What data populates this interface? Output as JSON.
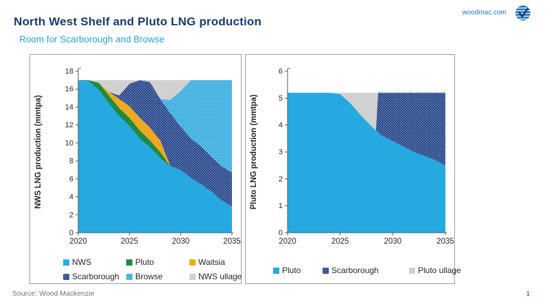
{
  "page": {
    "title": "North West Shelf and Pluto LNG production",
    "subtitle": "Room for Scarborough and Browse",
    "brand": "woodmac.com",
    "source": "Source: Wood Mackenzie",
    "page_number": "1"
  },
  "colors": {
    "title_navy": "#1B3A6B",
    "subtitle_blue": "#29A3D7",
    "brand_blue": "#1E74B9",
    "nws_blue": "#25A9E0",
    "pluto_green": "#1F8A44",
    "waitsia_yellow": "#F0A81E",
    "scarborough_navy": "#1A3A7E",
    "ullage_grey": "#C9C9C9",
    "axis_grey": "#595959",
    "source_grey": "#767171"
  },
  "chart_data": [
    {
      "type": "area",
      "stacked": true,
      "ylabel": "NWS LNG production (mmtpa)",
      "xlim": [
        2020,
        2035
      ],
      "ylim": [
        0,
        18
      ],
      "capacity": 17,
      "yticks": [
        0,
        2,
        4,
        6,
        8,
        10,
        12,
        14,
        16,
        18
      ],
      "xticks": [
        2020,
        2025,
        2030,
        2035
      ],
      "grid": false,
      "legend_position": "bottom",
      "x": [
        2020,
        2021,
        2022,
        2023,
        2024,
        2025,
        2026,
        2027,
        2028,
        2029,
        2030,
        2031,
        2032,
        2033,
        2034,
        2035
      ],
      "series": [
        {
          "name": "NWS",
          "fill": "#25A9E0",
          "values": [
            17.0,
            16.9,
            15.9,
            14.4,
            13.0,
            11.9,
            10.5,
            9.5,
            8.3,
            7.4,
            7.0,
            6.1,
            5.4,
            4.6,
            3.6,
            2.9
          ]
        },
        {
          "name": "Pluto",
          "fill": "#1F8A44",
          "values": [
            0,
            0.1,
            0.8,
            0.9,
            0.9,
            0.9,
            0.9,
            0.8,
            0.7,
            0,
            0,
            0,
            0,
            0,
            0,
            0
          ]
        },
        {
          "name": "Waitsia",
          "fill": "#F0A81E",
          "values": [
            0,
            0,
            0,
            0.4,
            1.0,
            1.3,
            1.4,
            1.4,
            1.3,
            0,
            0,
            0,
            0,
            0,
            0,
            0
          ]
        },
        {
          "name": "Scarborough",
          "fill": "pattern:scar",
          "values": [
            0,
            0,
            0,
            0,
            0.4,
            2.5,
            4.2,
            5.1,
            4.6,
            5.9,
            4.8,
            4.4,
            4.2,
            3.9,
            3.8,
            3.8
          ]
        },
        {
          "name": "Browse",
          "fill": "pattern:browse",
          "values": [
            0,
            0,
            0,
            0,
            0,
            0,
            0,
            0,
            0,
            1.5,
            4.0,
            6.5,
            7.4,
            8.5,
            9.6,
            10.3
          ]
        },
        {
          "name": "NWS ullage",
          "fill": "pattern:ullage",
          "values": [
            0,
            0,
            0.3,
            1.3,
            1.7,
            0.4,
            0,
            0.2,
            2.1,
            2.2,
            1.2,
            0,
            0,
            0,
            0,
            0
          ]
        }
      ]
    },
    {
      "type": "area",
      "stacked": true,
      "ylabel": "Pluto LNG production (mmtpa)",
      "xlim": [
        2020,
        2035
      ],
      "ylim": [
        0,
        6
      ],
      "capacity": 5.2,
      "yticks": [
        0,
        1,
        2,
        3,
        4,
        5,
        6
      ],
      "xticks": [
        2020,
        2025,
        2030,
        2035
      ],
      "grid": false,
      "legend_position": "bottom",
      "x": [
        2020,
        2021,
        2022,
        2023,
        2024,
        2025,
        2026,
        2027,
        2028,
        2028.4,
        2028.6,
        2029,
        2030,
        2031,
        2032,
        2033,
        2034,
        2035
      ],
      "series": [
        {
          "name": "Pluto",
          "fill": "#25A9E0",
          "values": [
            5.2,
            5.2,
            5.2,
            5.2,
            5.2,
            5.15,
            4.8,
            4.35,
            3.95,
            3.8,
            3.75,
            3.6,
            3.4,
            3.2,
            3.0,
            2.85,
            2.7,
            2.5
          ]
        },
        {
          "name": "Scarborough",
          "fill": "pattern:scar",
          "values": [
            0,
            0,
            0,
            0,
            0,
            0,
            0,
            0,
            0,
            0,
            1.45,
            1.6,
            1.8,
            2.0,
            2.2,
            2.35,
            2.5,
            2.7
          ]
        },
        {
          "name": "Pluto ullage",
          "fill": "pattern:ullage",
          "values": [
            0,
            0,
            0,
            0,
            0,
            0.05,
            0.4,
            0.85,
            1.25,
            1.4,
            0,
            0,
            0,
            0,
            0,
            0,
            0,
            0
          ]
        }
      ]
    }
  ]
}
